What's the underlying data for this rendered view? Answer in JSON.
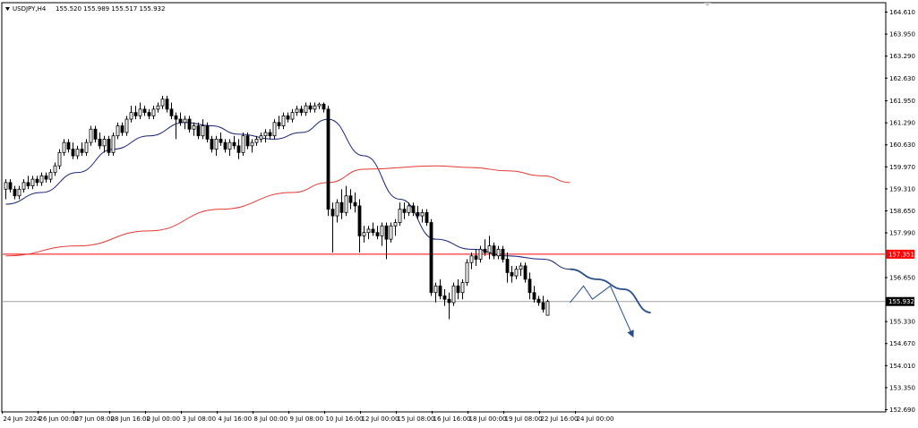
{
  "header": {
    "symbol_text": "USDJPY,H4",
    "ohlc_text": "155.520 155.989 155.517 155.932"
  },
  "colors": {
    "bull": "#ffffff",
    "bear": "#000000",
    "wick": "#000000",
    "ma_fast": "#1a237e",
    "ma_slow": "#e53935",
    "hline": "#ff0000",
    "current_line": "#a0a0a0",
    "forecast": "#264d8c",
    "axis": "#000000"
  },
  "chart_data": {
    "type": "candlestick",
    "title": "",
    "xlabel": "",
    "ylabel": "",
    "ylim": [
      152.69,
      164.94
    ],
    "y_ticks": [
      "164.610",
      "163.950",
      "163.290",
      "162.630",
      "161.950",
      "161.290",
      "160.630",
      "159.970",
      "159.310",
      "158.650",
      "157.990",
      "156.650",
      "155.330",
      "154.670",
      "154.010",
      "153.350",
      "152.690"
    ],
    "x_ticks": [
      "24 Jun 2024",
      "26 Jun 00:00",
      "27 Jun 08:00",
      "28 Jun 16:00",
      "2 Jul 00:00",
      "3 Jul 08:00",
      "4 Jul 16:00",
      "8 Jul 00:00",
      "9 Jul 08:00",
      "10 Jul 16:00",
      "12 Jul 00:00",
      "15 Jul 08:00",
      "16 Jul 16:00",
      "18 Jul 00:00",
      "19 Jul 08:00",
      "22 Jul 16:00",
      "24 Jul 00:00"
    ],
    "x_tick_bar_index": [
      0,
      8,
      16,
      24,
      32,
      40,
      48,
      56,
      64,
      72,
      80,
      88,
      96,
      104,
      112,
      120,
      128
    ],
    "price_labels": [
      {
        "text": "157.351",
        "value": 157.351,
        "bg": "#ff0000",
        "fg": "#ffffff"
      },
      {
        "text": "155.932",
        "value": 155.932,
        "bg": "#000000",
        "fg": "#ffffff"
      }
    ],
    "horizontal_line": 157.351,
    "current_price": 155.932,
    "candles": [
      [
        159.3,
        159.6,
        159.0,
        159.5
      ],
      [
        159.5,
        159.6,
        159.2,
        159.3
      ],
      [
        159.3,
        159.4,
        159.0,
        159.1
      ],
      [
        159.1,
        159.4,
        159.0,
        159.3
      ],
      [
        159.3,
        159.6,
        159.2,
        159.5
      ],
      [
        159.5,
        159.7,
        159.3,
        159.4
      ],
      [
        159.4,
        159.7,
        159.3,
        159.6
      ],
      [
        159.6,
        159.7,
        159.4,
        159.5
      ],
      [
        159.5,
        159.8,
        159.4,
        159.7
      ],
      [
        159.7,
        159.8,
        159.5,
        159.6
      ],
      [
        159.6,
        159.9,
        159.5,
        159.8
      ],
      [
        159.8,
        160.1,
        159.7,
        160.0
      ],
      [
        160.0,
        160.5,
        159.9,
        160.4
      ],
      [
        160.4,
        160.8,
        160.3,
        160.7
      ],
      [
        160.7,
        160.8,
        160.4,
        160.5
      ],
      [
        160.5,
        160.7,
        160.2,
        160.3
      ],
      [
        160.3,
        160.6,
        160.2,
        160.5
      ],
      [
        160.5,
        160.7,
        160.3,
        160.4
      ],
      [
        160.4,
        160.8,
        160.3,
        160.7
      ],
      [
        160.7,
        161.2,
        160.6,
        161.1
      ],
      [
        161.1,
        161.2,
        160.7,
        160.8
      ],
      [
        160.8,
        161.0,
        160.5,
        160.6
      ],
      [
        160.6,
        160.9,
        160.4,
        160.8
      ],
      [
        160.8,
        160.9,
        160.3,
        160.4
      ],
      [
        160.4,
        161.0,
        160.3,
        160.9
      ],
      [
        160.9,
        161.3,
        160.8,
        161.2
      ],
      [
        161.2,
        161.3,
        160.9,
        161.0
      ],
      [
        161.0,
        161.5,
        160.9,
        161.4
      ],
      [
        161.4,
        161.8,
        161.3,
        161.6
      ],
      [
        161.6,
        161.8,
        161.4,
        161.5
      ],
      [
        161.5,
        161.9,
        161.4,
        161.7
      ],
      [
        161.7,
        161.8,
        161.5,
        161.6
      ],
      [
        161.6,
        161.7,
        161.4,
        161.5
      ],
      [
        161.5,
        161.8,
        161.4,
        161.7
      ],
      [
        161.7,
        161.9,
        161.6,
        161.8
      ],
      [
        161.8,
        162.1,
        161.7,
        162.0
      ],
      [
        162.0,
        162.1,
        161.6,
        161.7
      ],
      [
        161.7,
        161.9,
        161.4,
        161.5
      ],
      [
        161.5,
        161.6,
        160.8,
        161.4
      ],
      [
        161.4,
        161.6,
        161.2,
        161.3
      ],
      [
        161.3,
        161.5,
        161.1,
        161.4
      ],
      [
        161.4,
        161.5,
        161.0,
        161.1
      ],
      [
        161.1,
        161.3,
        160.9,
        161.2
      ],
      [
        161.2,
        161.3,
        160.8,
        160.9
      ],
      [
        160.9,
        161.4,
        160.8,
        161.2
      ],
      [
        161.2,
        161.3,
        160.7,
        160.8
      ],
      [
        160.8,
        160.9,
        160.4,
        160.5
      ],
      [
        160.5,
        160.9,
        160.3,
        160.8
      ],
      [
        160.8,
        161.0,
        160.6,
        160.7
      ],
      [
        160.7,
        160.8,
        160.4,
        160.5
      ],
      [
        160.5,
        160.8,
        160.3,
        160.7
      ],
      [
        160.7,
        160.9,
        160.5,
        160.6
      ],
      [
        160.6,
        160.8,
        160.2,
        160.4
      ],
      [
        160.4,
        161.0,
        160.3,
        160.9
      ],
      [
        160.9,
        161.0,
        160.5,
        160.6
      ],
      [
        160.6,
        160.8,
        160.4,
        160.7
      ],
      [
        160.7,
        160.9,
        160.6,
        160.8
      ],
      [
        160.8,
        161.0,
        160.7,
        160.9
      ],
      [
        160.9,
        161.1,
        160.7,
        161.0
      ],
      [
        161.0,
        161.1,
        160.8,
        160.9
      ],
      [
        160.9,
        161.4,
        160.8,
        161.3
      ],
      [
        161.3,
        161.5,
        161.1,
        161.2
      ],
      [
        161.2,
        161.6,
        161.1,
        161.5
      ],
      [
        161.5,
        161.6,
        161.3,
        161.4
      ],
      [
        161.4,
        161.7,
        161.3,
        161.6
      ],
      [
        161.6,
        161.8,
        161.5,
        161.7
      ],
      [
        161.7,
        161.8,
        161.5,
        161.6
      ],
      [
        161.6,
        161.9,
        161.5,
        161.8
      ],
      [
        161.8,
        161.9,
        161.6,
        161.7
      ],
      [
        161.7,
        161.9,
        161.6,
        161.8
      ],
      [
        161.8,
        161.9,
        161.7,
        161.85
      ],
      [
        161.85,
        161.9,
        161.6,
        161.7
      ],
      [
        161.7,
        161.8,
        158.5,
        158.7
      ],
      [
        158.7,
        158.9,
        157.4,
        158.5
      ],
      [
        158.5,
        159.0,
        158.3,
        158.9
      ],
      [
        158.9,
        159.3,
        158.4,
        158.6
      ],
      [
        158.6,
        159.4,
        158.5,
        159.1
      ],
      [
        159.1,
        159.3,
        158.7,
        158.9
      ],
      [
        158.9,
        159.2,
        158.6,
        158.8
      ],
      [
        158.8,
        159.0,
        157.4,
        157.9
      ],
      [
        157.9,
        158.2,
        157.7,
        158.0
      ],
      [
        158.0,
        158.2,
        157.8,
        158.1
      ],
      [
        158.1,
        158.3,
        157.9,
        158.0
      ],
      [
        158.0,
        158.2,
        157.8,
        157.9
      ],
      [
        157.9,
        158.3,
        157.6,
        158.2
      ],
      [
        158.2,
        158.3,
        157.2,
        157.8
      ],
      [
        157.8,
        158.3,
        157.7,
        158.2
      ],
      [
        158.2,
        158.4,
        157.9,
        158.3
      ],
      [
        158.3,
        158.9,
        158.2,
        158.7
      ],
      [
        158.7,
        158.9,
        158.4,
        158.6
      ],
      [
        158.6,
        158.9,
        158.5,
        158.8
      ],
      [
        158.8,
        158.9,
        158.5,
        158.6
      ],
      [
        158.6,
        158.8,
        158.4,
        158.5
      ],
      [
        158.5,
        158.7,
        158.3,
        158.6
      ],
      [
        158.6,
        158.7,
        158.2,
        158.3
      ],
      [
        158.3,
        158.4,
        156.1,
        156.2
      ],
      [
        156.2,
        156.5,
        155.9,
        156.4
      ],
      [
        156.4,
        156.6,
        156.0,
        156.1
      ],
      [
        156.1,
        156.3,
        155.8,
        156.0
      ],
      [
        156.0,
        156.2,
        155.4,
        155.9
      ],
      [
        155.9,
        156.5,
        155.8,
        156.4
      ],
      [
        156.4,
        156.6,
        156.0,
        156.2
      ],
      [
        156.2,
        156.6,
        156.0,
        156.5
      ],
      [
        156.5,
        157.2,
        156.4,
        157.1
      ],
      [
        157.1,
        157.4,
        156.9,
        157.3
      ],
      [
        157.3,
        157.5,
        157.0,
        157.2
      ],
      [
        157.2,
        157.6,
        157.1,
        157.5
      ],
      [
        157.5,
        157.8,
        157.3,
        157.4
      ],
      [
        157.4,
        157.9,
        157.2,
        157.6
      ],
      [
        157.6,
        157.7,
        157.2,
        157.3
      ],
      [
        157.3,
        157.6,
        157.2,
        157.5
      ],
      [
        157.5,
        157.6,
        157.1,
        157.2
      ],
      [
        157.2,
        157.4,
        156.5,
        156.8
      ],
      [
        156.8,
        157.0,
        156.5,
        156.7
      ],
      [
        156.7,
        157.0,
        156.6,
        156.9
      ],
      [
        156.9,
        157.1,
        156.7,
        157.0
      ],
      [
        157.0,
        157.1,
        156.5,
        156.6
      ],
      [
        156.6,
        156.8,
        156.0,
        156.2
      ],
      [
        156.2,
        156.4,
        155.9,
        156.0
      ],
      [
        156.0,
        156.1,
        155.8,
        155.9
      ],
      [
        155.9,
        156.1,
        155.6,
        155.7
      ],
      [
        155.52,
        155.989,
        155.517,
        155.932
      ]
    ],
    "series": [
      {
        "values": [
          [
            0,
            158.85
          ],
          [
            8,
            159.2
          ],
          [
            16,
            159.8
          ],
          [
            24,
            160.5
          ],
          [
            32,
            160.9
          ],
          [
            40,
            161.3
          ],
          [
            46,
            161.2
          ],
          [
            52,
            160.95
          ],
          [
            60,
            160.8
          ],
          [
            66,
            161.0
          ],
          [
            72,
            161.4
          ],
          [
            80,
            160.3
          ],
          [
            88,
            159.0
          ],
          [
            96,
            157.8
          ],
          [
            104,
            157.5
          ],
          [
            112,
            157.3
          ],
          [
            120,
            157.2
          ],
          [
            126,
            156.9
          ]
        ]
      },
      {
        "values": [
          [
            0,
            157.3
          ],
          [
            16,
            157.6
          ],
          [
            32,
            158.05
          ],
          [
            48,
            158.7
          ],
          [
            64,
            159.2
          ],
          [
            72,
            159.5
          ],
          [
            80,
            159.9
          ],
          [
            96,
            160.0
          ],
          [
            104,
            159.95
          ],
          [
            112,
            159.85
          ],
          [
            120,
            159.7
          ],
          [
            126,
            159.5
          ]
        ]
      }
    ],
    "forecast": {
      "path": [
        [
          126,
          155.9
        ],
        [
          129,
          156.4
        ],
        [
          131,
          156.0
        ],
        [
          135,
          156.4
        ],
        [
          140,
          154.9
        ]
      ],
      "fast_line_projection": [
        [
          126,
          156.9
        ],
        [
          132,
          156.6
        ],
        [
          138,
          156.3
        ],
        [
          144,
          155.6
        ]
      ]
    }
  }
}
